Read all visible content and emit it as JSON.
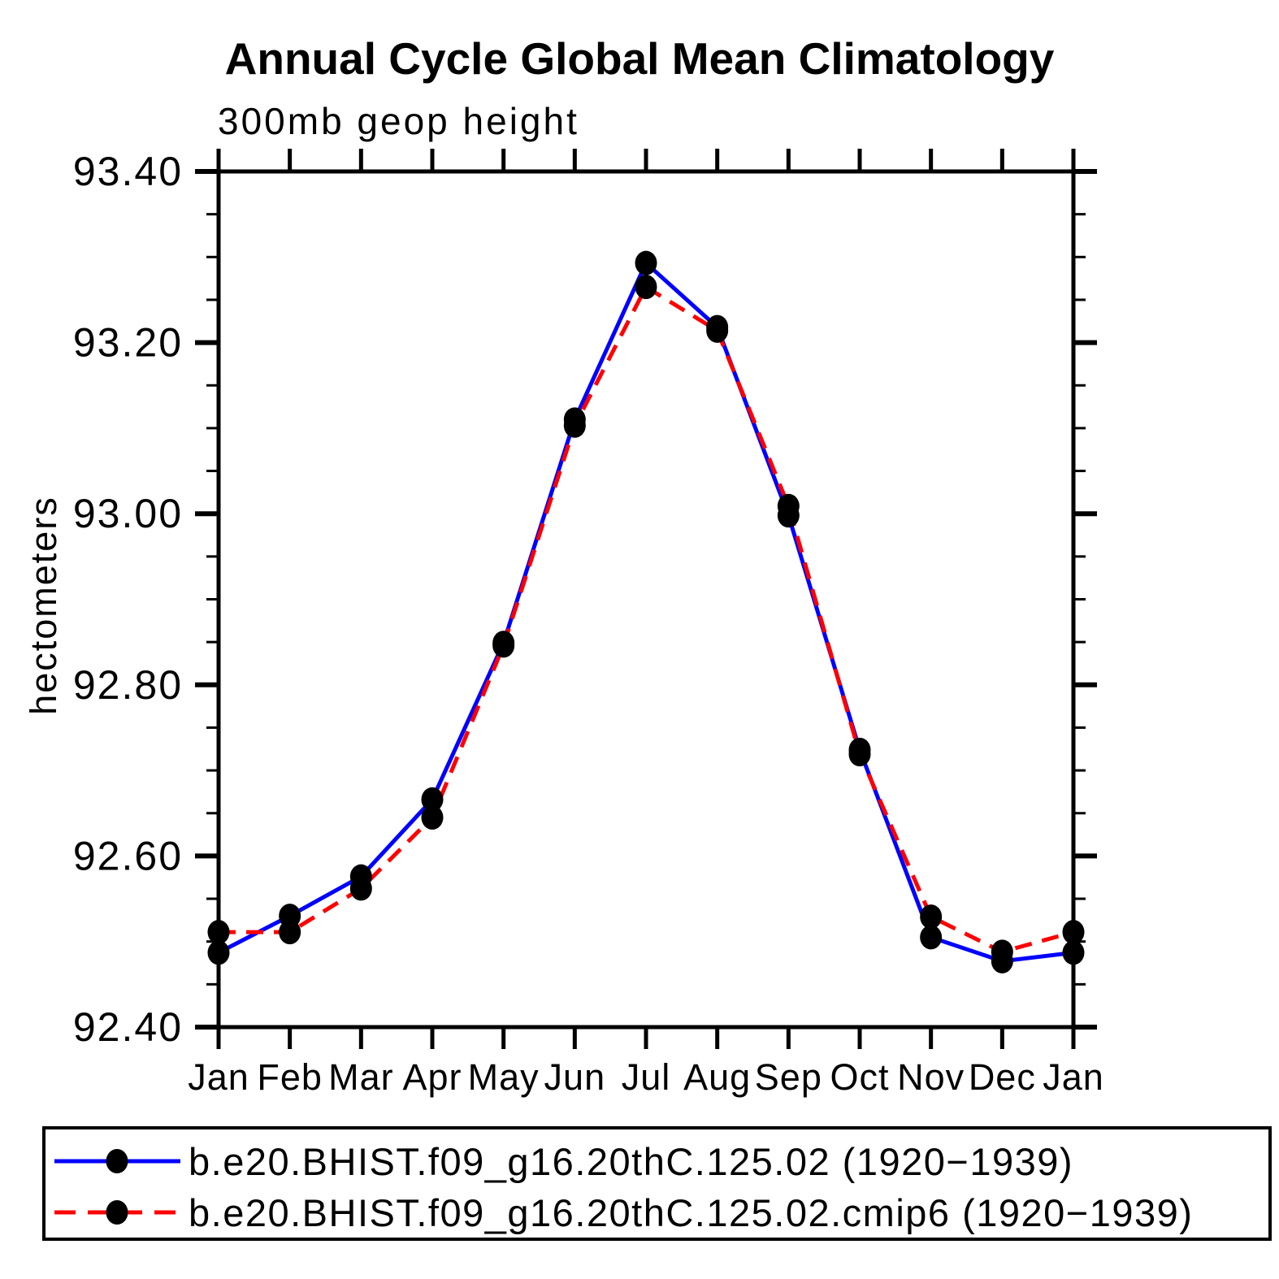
{
  "title": "Annual Cycle Global Mean Climatology",
  "subtitle": "300mb geop height",
  "ylabel": "hectometers",
  "colors": {
    "series1": "#0000ff",
    "series2": "#ff0000",
    "marker": "#000000",
    "axis": "#000000",
    "background": "#ffffff"
  },
  "legend": {
    "entries": [
      {
        "label": "b.e20.BHIST.f09_g16.20thC.125.02 (1920−1939)",
        "color": "#0000ff",
        "style": "solid",
        "marker": "filled-circle"
      },
      {
        "label": "b.e20.BHIST.f09_g16.20thC.125.02.cmip6 (1920−1939)",
        "color": "#ff0000",
        "style": "dashed",
        "marker": "filled-circle"
      }
    ]
  },
  "chart_data": {
    "type": "line",
    "title": "Annual Cycle Global Mean Climatology",
    "subtitle": "300mb geop height",
    "ylabel": "hectometers",
    "xlabel": "",
    "x": [
      "Jan",
      "Feb",
      "Mar",
      "Apr",
      "May",
      "Jun",
      "Jul",
      "Aug",
      "Sep",
      "Oct",
      "Nov",
      "Dec",
      "Jan"
    ],
    "series": [
      {
        "name": "b.e20.BHIST.f09_g16.20thC.125.02 (1920−1939)",
        "color": "#0000ff",
        "line_style": "solid",
        "marker": "filled-circle",
        "values": [
          92.487,
          92.53,
          92.576,
          92.666,
          92.849,
          93.11,
          93.293,
          93.218,
          92.998,
          92.724,
          92.505,
          92.477,
          92.487
        ]
      },
      {
        "name": "b.e20.BHIST.f09_g16.20thC.125.02.cmip6 (1920−1939)",
        "color": "#ff0000",
        "line_style": "dashed",
        "marker": "filled-circle",
        "values": [
          92.511,
          92.511,
          92.562,
          92.645,
          92.846,
          93.103,
          93.265,
          93.214,
          93.009,
          92.719,
          92.529,
          92.488,
          92.511
        ]
      }
    ],
    "ylim": [
      92.4,
      93.4
    ],
    "ytick_step": 0.2,
    "yminor_step": 0.05,
    "ytick_labels": [
      "92.40",
      "92.60",
      "92.80",
      "93.00",
      "93.20",
      "93.40"
    ],
    "grid": false,
    "legend_position": "bottom",
    "tick_direction": "out"
  }
}
